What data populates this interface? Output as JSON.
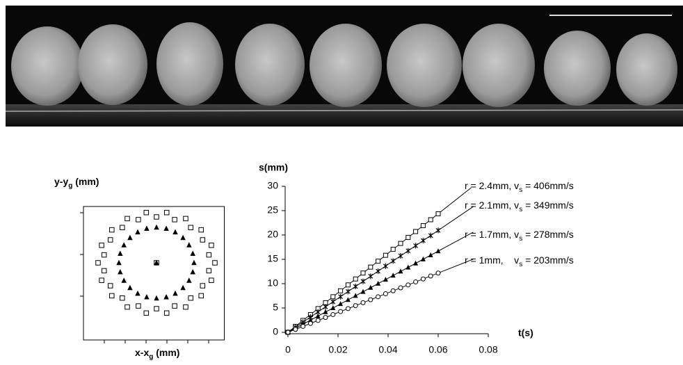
{
  "chart_data": [
    {
      "type": "scatter",
      "ylabel": {
        "text": "y-y",
        "sub": "g",
        "rest": " (mm)"
      },
      "xlabel": {
        "text": "x-x",
        "sub": "g",
        "rest": " (mm)"
      },
      "xlim": [
        -3.5,
        3.25
      ],
      "ylim": [
        -3.7,
        2.7
      ],
      "xticks": [
        -2.5,
        -1.5,
        -0.5,
        0.5,
        1.5,
        2.5
      ],
      "yticks": [
        -1.6,
        0.4,
        2.4
      ],
      "tick_labels": false,
      "series": [
        {
          "marker": "square",
          "color": "#000000",
          "x": [
            2.8,
            2.51,
            2.63,
            2.21,
            2.14,
            1.64,
            1.4,
            0.87,
            0.49,
            0,
            -0.49,
            -0.87,
            -1.4,
            -1.64,
            -2.14,
            -2.21,
            -2.63,
            -2.51,
            -2.8,
            -2.51,
            -2.63,
            -2.21,
            -2.14,
            -1.64,
            -1.4,
            -0.87,
            -0.49,
            0,
            0.49,
            0.87,
            1.4,
            1.64,
            2.14,
            2.21,
            2.63,
            2.51,
            0
          ],
          "values": [
            0,
            0.38,
            0.84,
            1.1,
            1.58,
            1.69,
            2.12,
            2.07,
            2.41,
            2.2,
            2.41,
            2.07,
            2.12,
            1.69,
            1.58,
            1.1,
            0.84,
            0.38,
            0,
            -0.38,
            -0.84,
            -1.1,
            -1.58,
            -1.69,
            -2.12,
            -2.07,
            -2.41,
            -2.2,
            -2.41,
            -2.07,
            -2.12,
            -1.69,
            -1.58,
            -1.1,
            -0.84,
            -0.38,
            0
          ]
        },
        {
          "marker": "triangle",
          "color": "#000000",
          "x": [
            1.8,
            1.74,
            1.56,
            1.27,
            0.9,
            0.47,
            0,
            -0.47,
            -0.9,
            -1.27,
            -1.56,
            -1.74,
            -1.8,
            -1.74,
            -1.56,
            -1.27,
            -0.9,
            -0.47,
            0,
            0.47,
            0.9,
            1.27,
            1.56,
            1.74,
            0
          ],
          "values": [
            0,
            0.44,
            0.85,
            1.2,
            1.47,
            1.64,
            1.7,
            1.64,
            1.47,
            1.2,
            0.85,
            0.44,
            0,
            -0.44,
            -0.85,
            -1.2,
            -1.47,
            -1.64,
            -1.7,
            -1.64,
            -1.47,
            -1.2,
            -0.85,
            -0.44,
            0
          ]
        }
      ]
    },
    {
      "type": "scatter",
      "ylabel": "s(mm)",
      "xlabel": "t(s)",
      "xlim": [
        0,
        0.08
      ],
      "ylim": [
        0,
        30
      ],
      "xticks": [
        0,
        0.02,
        0.04,
        0.06,
        0.08
      ],
      "yticks": [
        0,
        5,
        10,
        15,
        20,
        25,
        30
      ],
      "tick_labels": true,
      "x": [
        0,
        0.003,
        0.006,
        0.009,
        0.012,
        0.015,
        0.018,
        0.021,
        0.024,
        0.027,
        0.03,
        0.033,
        0.036,
        0.039,
        0.042,
        0.045,
        0.048,
        0.051,
        0.054,
        0.057,
        0.06
      ],
      "series": [
        {
          "marker": "square",
          "color": "#000000",
          "fit_slope": 406,
          "annotation": {
            "text": "r = 2.4mm, v",
            "sub": "s",
            "rest": " = 406mm/s"
          },
          "values": [
            0,
            1.22,
            2.44,
            3.65,
            4.87,
            6.09,
            7.31,
            8.53,
            9.74,
            10.96,
            12.18,
            13.4,
            14.62,
            15.83,
            17.05,
            18.27,
            19.49,
            20.71,
            21.92,
            23.14,
            24.36
          ]
        },
        {
          "marker": "star",
          "color": "#000000",
          "fit_slope": 349,
          "annotation": {
            "text": "r = 2.1mm, v",
            "sub": "s",
            "rest": " = 349mm/s"
          },
          "values": [
            0,
            1.05,
            2.09,
            3.14,
            4.19,
            5.24,
            6.28,
            7.33,
            8.38,
            9.42,
            10.47,
            11.52,
            12.56,
            13.61,
            14.66,
            15.71,
            16.75,
            17.8,
            18.85,
            19.89,
            20.94
          ]
        },
        {
          "marker": "triangle",
          "color": "#000000",
          "fit_slope": 278,
          "annotation": {
            "text": "r = 1.7mm, v",
            "sub": "s",
            "rest": " = 278mm/s"
          },
          "values": [
            0,
            0.83,
            1.67,
            2.5,
            3.34,
            4.17,
            5.0,
            5.84,
            6.67,
            7.51,
            8.34,
            9.17,
            10.01,
            10.84,
            11.68,
            12.51,
            13.34,
            14.18,
            15.01,
            15.85,
            16.68
          ]
        },
        {
          "marker": "circle",
          "color": "#000000",
          "fit_slope": 203,
          "annotation": {
            "text": "r = 1mm,    v",
            "sub": "s",
            "rest": " = 203mm/s"
          },
          "values": [
            0,
            0.61,
            1.22,
            1.83,
            2.44,
            3.05,
            3.65,
            4.26,
            4.87,
            5.48,
            6.09,
            6.7,
            7.31,
            7.92,
            8.53,
            9.14,
            9.74,
            10.35,
            10.96,
            11.57,
            12.18
          ]
        }
      ]
    }
  ]
}
